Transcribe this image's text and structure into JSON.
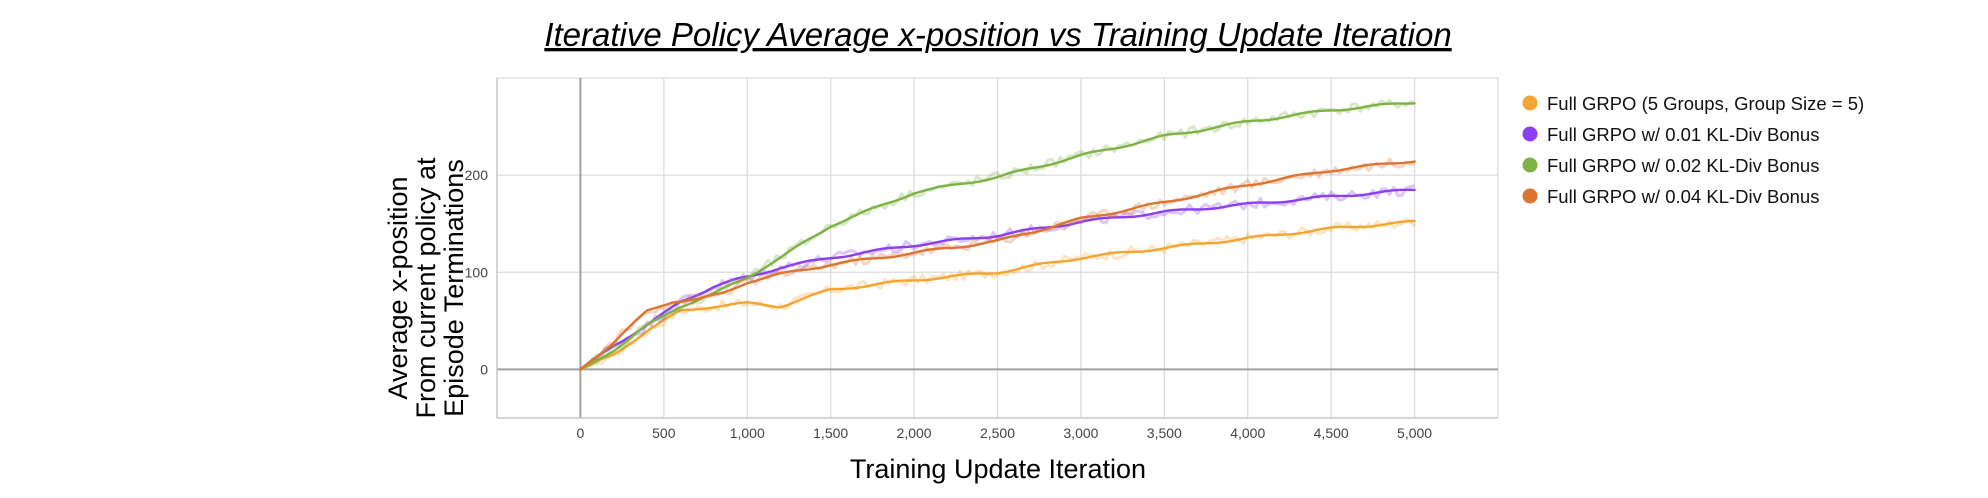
{
  "chart_data": {
    "type": "line",
    "title": "Iterative Policy Average x-position vs Training Update Iteration",
    "xlabel": "Training Update Iteration",
    "ylabel": [
      "Average x-position",
      "From current policy at",
      "Episode Terminations"
    ],
    "xlim": [
      -500,
      5500
    ],
    "ylim": [
      -50,
      300
    ],
    "x_ticks": [
      0,
      500,
      1000,
      1500,
      2000,
      2500,
      3000,
      3500,
      4000,
      4500,
      5000
    ],
    "x_tick_labels": [
      "0",
      "500",
      "1,000",
      "1,500",
      "2,000",
      "2,500",
      "3,000",
      "3,500",
      "4,000",
      "4,500",
      "5,000"
    ],
    "y_ticks": [
      0,
      100,
      200
    ],
    "y_tick_labels": [
      "0",
      "100",
      "200"
    ],
    "grid": true,
    "legend_position": "right",
    "series": [
      {
        "name": "Full GRPO (5 Groups, Group Size = 5)",
        "color": "#f2a531",
        "x": [
          0,
          200,
          400,
          600,
          800,
          1000,
          1200,
          1500,
          2000,
          2500,
          3000,
          3500,
          4000,
          4500,
          5000
        ],
        "y": [
          0,
          15,
          40,
          60,
          65,
          68,
          65,
          82,
          92,
          100,
          115,
          125,
          135,
          145,
          152
        ]
      },
      {
        "name": "Full GRPO w/ 0.01 KL-Div Bonus",
        "color": "#8a3ff0",
        "x": [
          0,
          200,
          400,
          600,
          800,
          950,
          1000,
          1200,
          1500,
          2000,
          2500,
          3000,
          3500,
          4000,
          4500,
          5000
        ],
        "y": [
          0,
          25,
          45,
          70,
          85,
          93,
          95,
          105,
          115,
          128,
          138,
          152,
          162,
          170,
          178,
          185
        ]
      },
      {
        "name": "Full GRPO w/ 0.02 KL-Div Bonus",
        "color": "#7db344",
        "x": [
          0,
          200,
          400,
          600,
          800,
          1000,
          1200,
          1500,
          2000,
          2500,
          3000,
          3500,
          4000,
          4500,
          5000
        ],
        "y": [
          0,
          20,
          45,
          65,
          78,
          95,
          115,
          148,
          182,
          198,
          220,
          240,
          255,
          267,
          275
        ]
      },
      {
        "name": "Full GRPO w/ 0.04 KL-Div Bonus",
        "color": "#dc7531",
        "x": [
          0,
          200,
          400,
          550,
          700,
          850,
          1000,
          1200,
          1500,
          2000,
          2500,
          3000,
          3500,
          4000,
          4500,
          5000
        ],
        "y": [
          0,
          28,
          60,
          70,
          72,
          78,
          90,
          98,
          108,
          120,
          132,
          155,
          172,
          190,
          205,
          215
        ]
      }
    ]
  }
}
